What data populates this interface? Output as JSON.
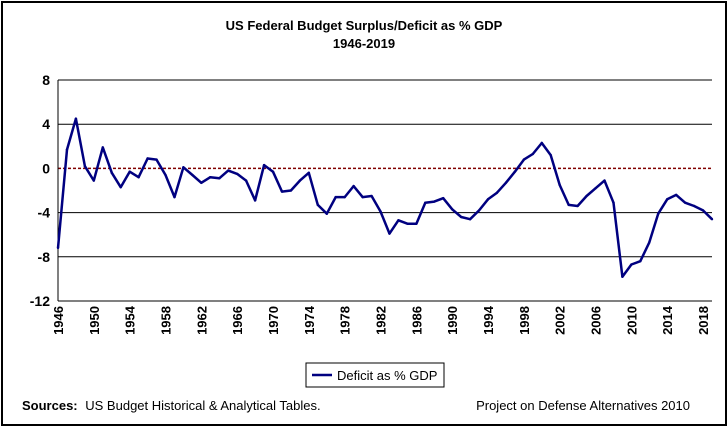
{
  "chart_data": {
    "type": "line",
    "title": "US Federal Budget Surplus/Deficit as % GDP",
    "subtitle": "1946-2019",
    "xlabel": "",
    "ylabel": "",
    "xlim": [
      1946,
      2019
    ],
    "ylim": [
      -12,
      8
    ],
    "y_ticks": [
      8,
      4,
      0,
      -4,
      -8,
      -12
    ],
    "y_tick_labels": [
      "8",
      "4",
      "0",
      "-4",
      "-8",
      "-12"
    ],
    "x_tick_labels": [
      "1946",
      "1950",
      "1954",
      "1958",
      "1962",
      "1966",
      "1970",
      "1974",
      "1978",
      "1982",
      "1986",
      "1990",
      "1994",
      "1998",
      "2002",
      "2006",
      "2010",
      "2014",
      "2018"
    ],
    "grid": "horizontal",
    "legend_position": "bottom-center",
    "colors": {
      "series_line": "#000080",
      "zero_line": "#800000",
      "gridline": "#000000",
      "frame": "#000000"
    },
    "series": [
      {
        "name": "Deficit as % GDP",
        "x": [
          1946,
          1947,
          1948,
          1949,
          1950,
          1951,
          1952,
          1953,
          1954,
          1955,
          1956,
          1957,
          1958,
          1959,
          1960,
          1961,
          1962,
          1963,
          1964,
          1965,
          1966,
          1967,
          1968,
          1969,
          1970,
          1971,
          1972,
          1973,
          1974,
          1975,
          1976,
          1977,
          1978,
          1979,
          1980,
          1981,
          1982,
          1983,
          1984,
          1985,
          1986,
          1987,
          1988,
          1989,
          1990,
          1991,
          1992,
          1993,
          1994,
          1995,
          1996,
          1997,
          1998,
          1999,
          2000,
          2001,
          2002,
          2003,
          2004,
          2005,
          2006,
          2007,
          2008,
          2009,
          2010,
          2011,
          2012,
          2013,
          2014,
          2015,
          2016,
          2017,
          2018,
          2019
        ],
        "values": [
          -7.2,
          1.7,
          4.5,
          0.2,
          -1.1,
          1.9,
          -0.4,
          -1.7,
          -0.3,
          -0.8,
          0.9,
          0.8,
          -0.6,
          -2.6,
          0.1,
          -0.6,
          -1.3,
          -0.8,
          -0.9,
          -0.2,
          -0.5,
          -1.1,
          -2.9,
          0.3,
          -0.3,
          -2.1,
          -2.0,
          -1.1,
          -0.4,
          -3.3,
          -4.1,
          -2.6,
          -2.6,
          -1.6,
          -2.6,
          -2.5,
          -3.9,
          -5.9,
          -4.7,
          -5.0,
          -5.0,
          -3.1,
          -3.0,
          -2.7,
          -3.7,
          -4.4,
          -4.6,
          -3.8,
          -2.8,
          -2.2,
          -1.3,
          -0.3,
          0.8,
          1.3,
          2.3,
          1.2,
          -1.5,
          -3.3,
          -3.4,
          -2.5,
          -1.8,
          -1.1,
          -3.1,
          -9.8,
          -8.7,
          -8.4,
          -6.7,
          -4.1,
          -2.8,
          -2.4,
          -3.1,
          -3.4,
          -3.8,
          -4.6
        ]
      }
    ]
  },
  "footer": {
    "sources_label": "Sources:",
    "sources_text": "US Budget Historical & Analytical Tables.",
    "credit": "Project on Defense Alternatives 2010"
  }
}
